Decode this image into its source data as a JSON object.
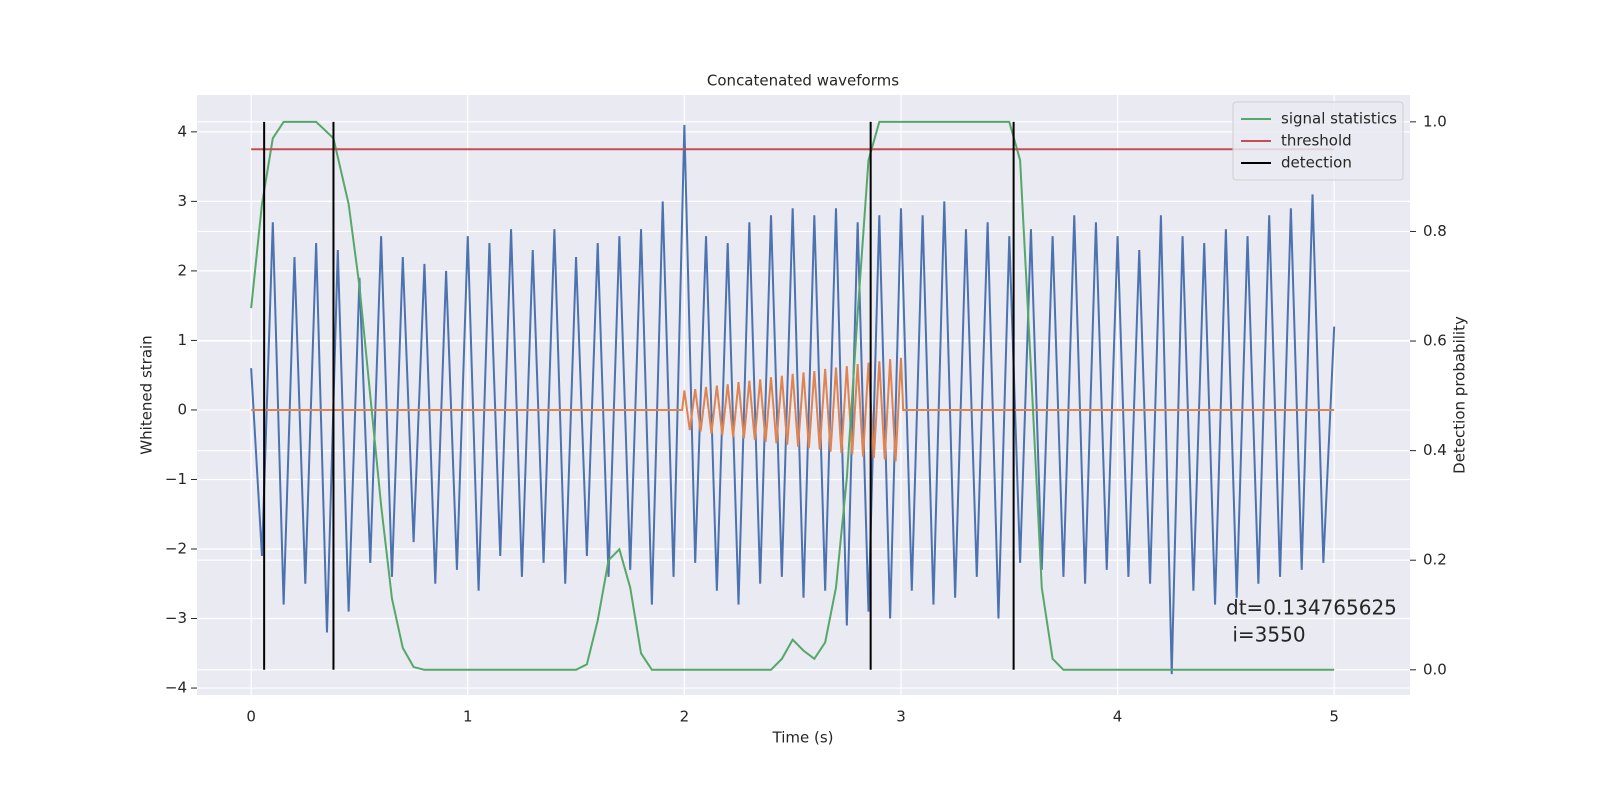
{
  "chart_data": {
    "type": "line",
    "title": "Concatenated waveforms",
    "x_label": "Time (s)",
    "y_label": "Whitened strain",
    "y2_label": "Detection probability",
    "xlim": [
      -0.25,
      5.35
    ],
    "xticks": [
      0,
      1,
      2,
      3,
      4,
      5
    ],
    "ylim": [
      -4.1,
      4.53
    ],
    "yticks": [
      {
        "value": -4,
        "label": "−4"
      },
      {
        "value": -3,
        "label": "−3"
      },
      {
        "value": -2,
        "label": "−2"
      },
      {
        "value": -1,
        "label": "−1"
      },
      0,
      1,
      2,
      3,
      4
    ],
    "y2lim": [
      -0.046,
      1.049
    ],
    "y2ticks": [
      {
        "value": 0,
        "label": "0.0"
      },
      0.2,
      0.4,
      0.6,
      0.8,
      {
        "value": 1,
        "label": "1.0"
      }
    ],
    "grid": true,
    "legend": "upper right",
    "series": [
      {
        "color": "#4c72b0",
        "x": [
          0,
          0.05,
          0.1,
          0.15,
          0.2,
          0.25,
          0.3,
          0.35,
          0.4,
          0.45,
          0.5,
          0.55,
          0.6,
          0.65,
          0.7,
          0.75,
          0.8,
          0.85,
          0.9,
          0.95,
          1.0,
          1.05,
          1.1,
          1.15,
          1.2,
          1.25,
          1.3,
          1.35,
          1.4,
          1.45,
          1.5,
          1.55,
          1.6,
          1.65,
          1.7,
          1.75,
          1.8,
          1.85,
          1.9,
          1.95,
          2.0,
          2.05,
          2.1,
          2.15,
          2.2,
          2.25,
          2.3,
          2.35,
          2.4,
          2.45,
          2.5,
          2.55,
          2.6,
          2.65,
          2.7,
          2.75,
          2.8,
          2.85,
          2.9,
          2.95,
          3.0,
          3.05,
          3.1,
          3.15,
          3.2,
          3.25,
          3.3,
          3.35,
          3.4,
          3.45,
          3.5,
          3.55,
          3.6,
          3.65,
          3.7,
          3.75,
          3.8,
          3.85,
          3.9,
          3.95,
          4.0,
          4.05,
          4.1,
          4.15,
          4.2,
          4.25,
          4.3,
          4.35,
          4.4,
          4.45,
          4.5,
          4.55,
          4.6,
          4.65,
          4.7,
          4.75,
          4.8,
          4.85,
          4.9,
          4.95,
          5.0
        ],
        "values": [
          0.6,
          -2.1,
          2.7,
          -2.8,
          2.2,
          -2.5,
          2.4,
          -3.2,
          2.3,
          -2.9,
          1.9,
          -2.2,
          2.5,
          -2.4,
          2.2,
          -1.9,
          2.1,
          -2.5,
          2.0,
          -2.3,
          2.5,
          -2.6,
          2.4,
          -2.1,
          2.6,
          -2.4,
          2.3,
          -2.2,
          2.6,
          -2.5,
          2.2,
          -2.1,
          2.4,
          -2.4,
          2.5,
          -2.3,
          2.6,
          -2.8,
          3.0,
          -2.4,
          4.1,
          -2.2,
          2.5,
          -2.6,
          2.4,
          -2.8,
          2.7,
          -2.5,
          2.8,
          -2.4,
          2.9,
          -2.7,
          2.8,
          -2.6,
          2.9,
          -3.1,
          2.7,
          -2.9,
          2.8,
          -3.0,
          2.9,
          -2.6,
          2.8,
          -2.8,
          3.0,
          -2.7,
          2.6,
          -2.4,
          2.7,
          -3.0,
          2.5,
          -2.2,
          2.6,
          -2.3,
          2.5,
          -2.4,
          2.8,
          -2.5,
          2.7,
          -2.3,
          2.5,
          -2.4,
          2.3,
          -2.5,
          2.8,
          -3.8,
          2.5,
          -2.6,
          2.4,
          -2.8,
          2.6,
          -2.7,
          2.5,
          -2.5,
          2.8,
          -2.4,
          2.9,
          -2.3,
          3.1,
          -2.2,
          1.2
        ]
      },
      {
        "color": "#dd8452",
        "x": [
          0,
          1.99,
          2.0,
          2.025,
          2.05,
          2.075,
          2.1,
          2.125,
          2.15,
          2.175,
          2.2,
          2.225,
          2.25,
          2.275,
          2.3,
          2.325,
          2.35,
          2.375,
          2.4,
          2.425,
          2.45,
          2.475,
          2.5,
          2.525,
          2.55,
          2.575,
          2.6,
          2.625,
          2.65,
          2.675,
          2.7,
          2.725,
          2.75,
          2.775,
          2.8,
          2.825,
          2.85,
          2.875,
          2.9,
          2.925,
          2.95,
          2.975,
          3.0,
          3.01,
          5.0
        ],
        "values": [
          0,
          0,
          0.28,
          -0.29,
          0.3,
          -0.31,
          0.33,
          -0.34,
          0.35,
          -0.36,
          0.37,
          -0.39,
          0.4,
          -0.41,
          0.42,
          -0.43,
          0.44,
          -0.46,
          0.47,
          -0.48,
          0.49,
          -0.5,
          0.52,
          -0.53,
          0.54,
          -0.55,
          0.56,
          -0.57,
          0.59,
          -0.6,
          0.61,
          -0.62,
          0.63,
          -0.64,
          0.66,
          -0.67,
          0.68,
          -0.69,
          0.7,
          -0.71,
          0.73,
          -0.74,
          0.75,
          0,
          0
        ]
      },
      {
        "name": "signal statistics",
        "color": "#55a868",
        "axis": "y2",
        "x": [
          0,
          0.05,
          0.1,
          0.15,
          0.3,
          0.38,
          0.45,
          0.5,
          0.55,
          0.6,
          0.65,
          0.7,
          0.75,
          0.8,
          1.5,
          1.55,
          1.6,
          1.65,
          1.7,
          1.75,
          1.8,
          1.85,
          2.4,
          2.45,
          2.5,
          2.55,
          2.6,
          2.65,
          2.7,
          2.75,
          2.8,
          2.85,
          2.9,
          3.5,
          3.55,
          3.6,
          3.65,
          3.7,
          3.75,
          5.0
        ],
        "values": [
          0.66,
          0.85,
          0.97,
          1.0,
          1.0,
          0.97,
          0.85,
          0.7,
          0.5,
          0.3,
          0.13,
          0.04,
          0.005,
          0,
          0,
          0.01,
          0.09,
          0.2,
          0.22,
          0.15,
          0.03,
          0,
          0,
          0.02,
          0.055,
          0.035,
          0.02,
          0.05,
          0.15,
          0.35,
          0.65,
          0.93,
          1.0,
          1.0,
          0.93,
          0.55,
          0.15,
          0.02,
          0,
          0
        ]
      },
      {
        "name": "threshold",
        "color": "#c44e52",
        "axis": "y2",
        "x": [
          0,
          5
        ],
        "values": [
          0.95,
          0.95
        ]
      }
    ],
    "vlines": {
      "name": "detection",
      "color": "#000000",
      "axis": "y2",
      "x": [
        0.06,
        0.38,
        2.86,
        3.52
      ],
      "ymin": 0,
      "ymax": 1
    },
    "annotation": [
      "dt=0.134765625",
      " i=3550"
    ]
  }
}
